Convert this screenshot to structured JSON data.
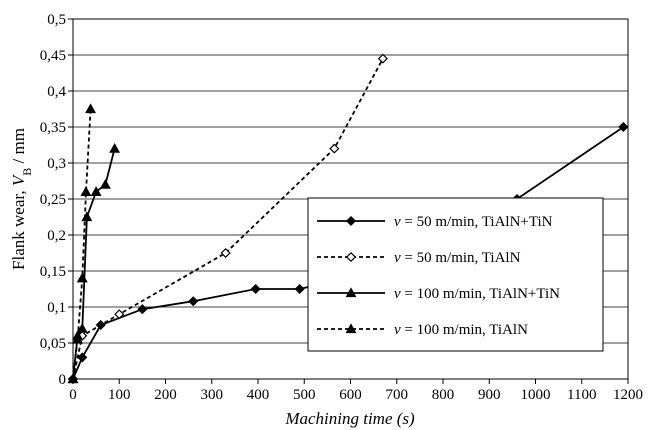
{
  "chart_data": {
    "type": "line",
    "title": "",
    "xlabel": "Machining time (s)",
    "ylabel_prefix": "Flank wear, ",
    "ylabel_var": "V",
    "ylabel_sub": "B",
    "ylabel_suffix": " / mm",
    "xlim": [
      0,
      1200
    ],
    "ylim": [
      0,
      0.5
    ],
    "x_ticks": [
      "0",
      "100",
      "200",
      "300",
      "400",
      "500",
      "600",
      "700",
      "800",
      "900",
      "1000",
      "1100",
      "1200"
    ],
    "y_ticks": [
      "0",
      "0,05",
      "0,1",
      "0,15",
      "0,2",
      "0,25",
      "0,3",
      "0,35",
      "0,4",
      "0,45",
      "0,5"
    ],
    "grid": "horizontal",
    "legend_position": "right",
    "series": [
      {
        "name": "v = 50 m/min, TiAlN+TiN",
        "legend_var": "v",
        "legend_rest": " = 50 m/min, TiAlN+TiN",
        "dash": "solid",
        "marker": "diamond-filled",
        "x": [
          0,
          20,
          60,
          150,
          260,
          395,
          490,
          590,
          960,
          1190
        ],
        "y": [
          0,
          0.03,
          0.075,
          0.097,
          0.108,
          0.125,
          0.125,
          0.14,
          0.25,
          0.35
        ]
      },
      {
        "name": "v = 50 m/min, TiAlN",
        "legend_var": "v",
        "legend_rest": " = 50 m/min, TiAlN",
        "dash": "dashed",
        "marker": "diamond-open",
        "x": [
          0,
          20,
          100,
          330,
          565,
          670
        ],
        "y": [
          0,
          0.06,
          0.09,
          0.175,
          0.32,
          0.445
        ]
      },
      {
        "name": "v = 100 m/min, TiAlN+TiN",
        "legend_var": "v",
        "legend_rest": " = 100 m/min, TiAlN+TiN",
        "dash": "solid",
        "marker": "triangle-filled",
        "x": [
          0,
          10,
          20,
          30,
          50,
          70,
          90
        ],
        "y": [
          0,
          0.06,
          0.07,
          0.225,
          0.26,
          0.27,
          0.32
        ]
      },
      {
        "name": "v = 100 m/min, TiAlN",
        "legend_var": "v",
        "legend_rest": " = 100 m/min, TiAlN",
        "dash": "dashed",
        "marker": "triangle-filled",
        "x": [
          0,
          10,
          20,
          28,
          38
        ],
        "y": [
          0,
          0.055,
          0.14,
          0.26,
          0.375
        ]
      }
    ]
  }
}
